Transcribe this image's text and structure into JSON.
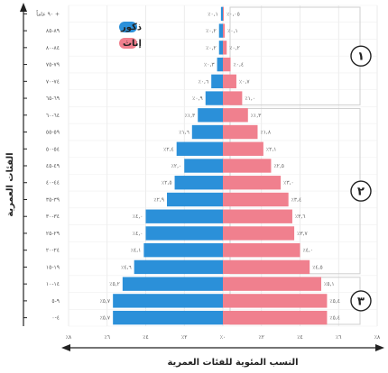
{
  "chart_data": {
    "type": "bar",
    "orientation": "horizontal-pyramid",
    "categories": [
      "٩٠ عاماً +",
      "٨٩-٨٥",
      "٨٤-٨٠",
      "٧٩-٧٥",
      "٧٤-٧٠",
      "٦٩-٦٥",
      "٦٤-٦٠",
      "٥٩-٥٥",
      "٥٤-٥٠",
      "٤٩-٤٥",
      "٤٤-٤٠",
      "٣٩-٣٥",
      "٣٤-٣٠",
      "٢٩-٢٥",
      "٢٤-٢٠",
      "١٩-١٥",
      "١٤-١٠",
      "٩-٥",
      "٤-٠"
    ],
    "series": [
      {
        "name": "ذكور",
        "color": "#2b90d9",
        "side": "left",
        "values": [
          0.1,
          0.2,
          0.2,
          0.3,
          0.6,
          0.9,
          1.3,
          1.6,
          2.4,
          2.0,
          2.5,
          2.9,
          4.0,
          4.0,
          4.1,
          4.6,
          5.2,
          5.7,
          5.7
        ],
        "labels": [
          "٪٠,١",
          "٪٠,٢",
          "٪٠,٢",
          "٪٠,٣",
          "٪٠,٦",
          "٪٠,٩",
          "٪١,٣",
          "٪١,٦",
          "٪٢,٤",
          "٪٢,٠",
          "٪٢,٥",
          "٪٢,٩",
          "٪٤,٠",
          "٪٤,٠",
          "٪٤,١",
          "٪٤,٦",
          "٪٥,٢",
          "٪٥,٧",
          "٪٥,٧"
        ]
      },
      {
        "name": "إناث",
        "color": "#f0808e",
        "side": "right",
        "values": [
          0.05,
          0.1,
          0.2,
          0.4,
          0.7,
          1.0,
          1.3,
          1.8,
          2.1,
          2.5,
          3.0,
          3.4,
          3.6,
          3.7,
          4.0,
          4.5,
          5.1,
          5.4,
          5.4
        ],
        "labels": [
          "٪٠,٠٥",
          "٪٠,١",
          "٪٠,٢",
          "٪٠,٤",
          "٪٠,٧",
          "٪١,٠",
          "٪١,٣",
          "٪١,٨",
          "٪٢,١",
          "٪٢,٥",
          "٪٣,٠",
          "٪٣,٤",
          "٪٣,٦",
          "٪٣,٧",
          "٪٤,٠",
          "٪٤,٥",
          "٪٥,١",
          "٪٥,٤",
          "٪٥,٤"
        ]
      }
    ],
    "xlim": [
      -8,
      8
    ],
    "xticks": [
      -8,
      -6,
      -4,
      -2,
      0,
      2,
      4,
      6,
      8
    ],
    "xtick_labels": [
      "٪٨",
      "٪٦",
      "٪٤",
      "٪٢",
      "٪٠",
      "٪٢",
      "٪٤",
      "٪٦",
      "٪٨"
    ],
    "xlabel": "النسب المئوية للفئات العمرية",
    "ylabel": "الفئات العمرية",
    "legend": {
      "placement": "top-left",
      "entries": [
        "ذكور",
        "إناث"
      ]
    },
    "grid": true,
    "groups": [
      {
        "label": "١",
        "from_category": 0,
        "to_category": 5
      },
      {
        "label": "٢",
        "from_category": 6,
        "to_category": 15
      },
      {
        "label": "٣",
        "from_category": 16,
        "to_category": 18
      }
    ]
  }
}
